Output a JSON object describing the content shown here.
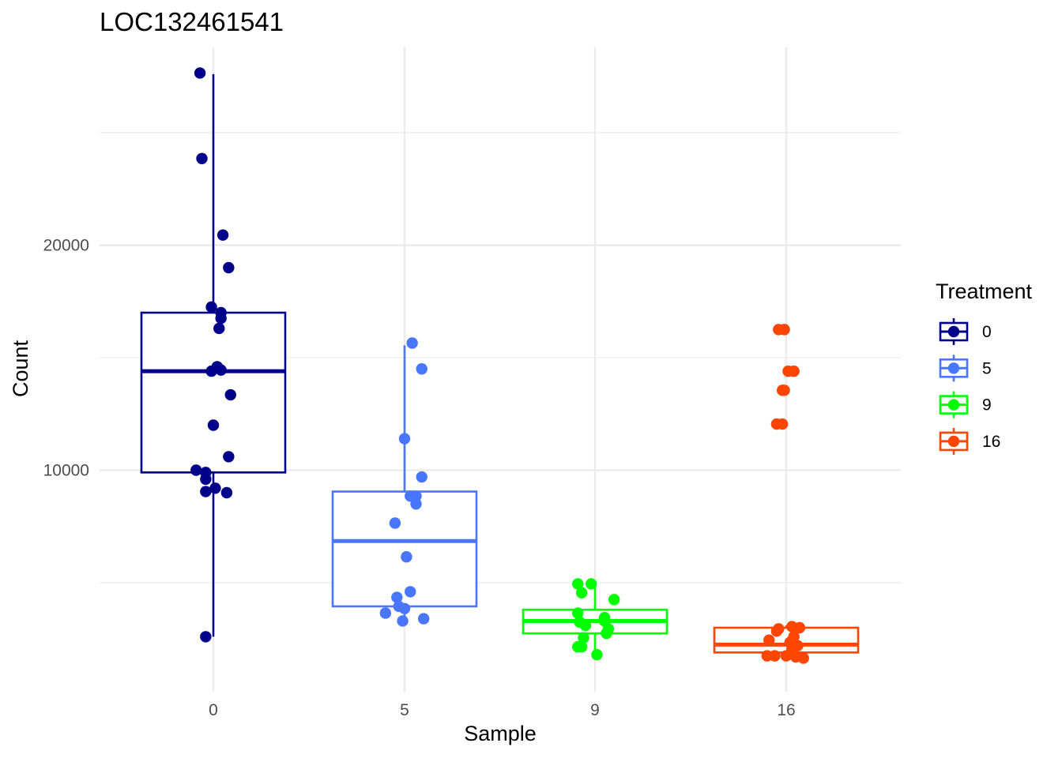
{
  "chart_data": {
    "type": "box",
    "title": "LOC132461541",
    "xlabel": "Sample",
    "ylabel": "Count",
    "categories": [
      "0",
      "5",
      "9",
      "16"
    ],
    "ylim": [
      500,
      29000
    ],
    "yticks": [
      10000,
      20000
    ],
    "grid": true,
    "legend": {
      "title": "Treatment",
      "position": "right",
      "entries": [
        "0",
        "5",
        "9",
        "16"
      ]
    },
    "series": [
      {
        "name": "0",
        "color": "#00008B",
        "box": {
          "whisker_low": 2600,
          "q1": 9900,
          "median": 14400,
          "q3": 17000,
          "whisker_high": 27600
        },
        "points": [
          {
            "offset": -0.07,
            "y": 27650
          },
          {
            "offset": -0.06,
            "y": 23850
          },
          {
            "offset": 0.05,
            "y": 20450
          },
          {
            "offset": 0.08,
            "y": 19000
          },
          {
            "offset": -0.01,
            "y": 17250
          },
          {
            "offset": 0.04,
            "y": 17000
          },
          {
            "offset": 0.04,
            "y": 16750
          },
          {
            "offset": 0.03,
            "y": 16300
          },
          {
            "offset": 0.02,
            "y": 14600
          },
          {
            "offset": 0.04,
            "y": 14450
          },
          {
            "offset": -0.01,
            "y": 14400
          },
          {
            "offset": 0.09,
            "y": 13350
          },
          {
            "offset": 0.0,
            "y": 12000
          },
          {
            "offset": 0.08,
            "y": 10600
          },
          {
            "offset": -0.09,
            "y": 10000
          },
          {
            "offset": -0.04,
            "y": 9900
          },
          {
            "offset": -0.04,
            "y": 9600
          },
          {
            "offset": 0.01,
            "y": 9200
          },
          {
            "offset": -0.04,
            "y": 9050
          },
          {
            "offset": 0.07,
            "y": 9000
          },
          {
            "offset": -0.04,
            "y": 2600
          }
        ]
      },
      {
        "name": "5",
        "color": "#4876FF",
        "box": {
          "whisker_low": 3300,
          "q1": 3950,
          "median": 6850,
          "q3": 9050,
          "whisker_high": 15550
        },
        "points": [
          {
            "offset": 0.04,
            "y": 15650
          },
          {
            "offset": 0.09,
            "y": 14500
          },
          {
            "offset": 0.0,
            "y": 11400
          },
          {
            "offset": 0.09,
            "y": 9700
          },
          {
            "offset": 0.03,
            "y": 8850
          },
          {
            "offset": 0.06,
            "y": 8850
          },
          {
            "offset": 0.06,
            "y": 8500
          },
          {
            "offset": -0.05,
            "y": 7650
          },
          {
            "offset": 0.01,
            "y": 6150
          },
          {
            "offset": 0.03,
            "y": 4600
          },
          {
            "offset": -0.04,
            "y": 4350
          },
          {
            "offset": -0.03,
            "y": 3950
          },
          {
            "offset": 0.0,
            "y": 3850
          },
          {
            "offset": -0.1,
            "y": 3650
          },
          {
            "offset": 0.1,
            "y": 3400
          },
          {
            "offset": -0.01,
            "y": 3300
          }
        ]
      },
      {
        "name": "9",
        "color": "#00FF00",
        "box": {
          "whisker_low": 2000,
          "q1": 2750,
          "median": 3300,
          "q3": 3800,
          "whisker_high": 4950
        },
        "points": [
          {
            "offset": -0.09,
            "y": 4950
          },
          {
            "offset": -0.02,
            "y": 4950
          },
          {
            "offset": -0.07,
            "y": 4550
          },
          {
            "offset": 0.1,
            "y": 4250
          },
          {
            "offset": -0.09,
            "y": 3650
          },
          {
            "offset": 0.05,
            "y": 3450
          },
          {
            "offset": 0.05,
            "y": 3300
          },
          {
            "offset": -0.08,
            "y": 3250
          },
          {
            "offset": -0.05,
            "y": 3100
          },
          {
            "offset": 0.07,
            "y": 2950
          },
          {
            "offset": 0.06,
            "y": 2750
          },
          {
            "offset": -0.06,
            "y": 2550
          },
          {
            "offset": -0.09,
            "y": 2150
          },
          {
            "offset": -0.07,
            "y": 2150
          },
          {
            "offset": 0.01,
            "y": 1800
          }
        ]
      },
      {
        "name": "16",
        "color": "#FF4500",
        "box": {
          "whisker_low": 1700,
          "q1": 1900,
          "median": 2250,
          "q3": 3000,
          "whisker_high": 3100
        },
        "points": [
          {
            "offset": -0.04,
            "y": 16250
          },
          {
            "offset": -0.01,
            "y": 16250
          },
          {
            "offset": 0.01,
            "y": 14400
          },
          {
            "offset": 0.04,
            "y": 14400
          },
          {
            "offset": -0.02,
            "y": 13550
          },
          {
            "offset": -0.01,
            "y": 13550
          },
          {
            "offset": -0.05,
            "y": 12050
          },
          {
            "offset": -0.02,
            "y": 12050
          },
          {
            "offset": 0.03,
            "y": 3050
          },
          {
            "offset": 0.07,
            "y": 3000
          },
          {
            "offset": -0.04,
            "y": 2950
          },
          {
            "offset": -0.05,
            "y": 2850
          },
          {
            "offset": 0.04,
            "y": 2600
          },
          {
            "offset": -0.09,
            "y": 2450
          },
          {
            "offset": 0.02,
            "y": 2350
          },
          {
            "offset": 0.06,
            "y": 2200
          },
          {
            "offset": 0.03,
            "y": 2050
          },
          {
            "offset": -0.1,
            "y": 1750
          },
          {
            "offset": -0.06,
            "y": 1750
          },
          {
            "offset": 0.0,
            "y": 1750
          },
          {
            "offset": 0.05,
            "y": 1700
          },
          {
            "offset": 0.09,
            "y": 1650
          }
        ]
      }
    ]
  }
}
